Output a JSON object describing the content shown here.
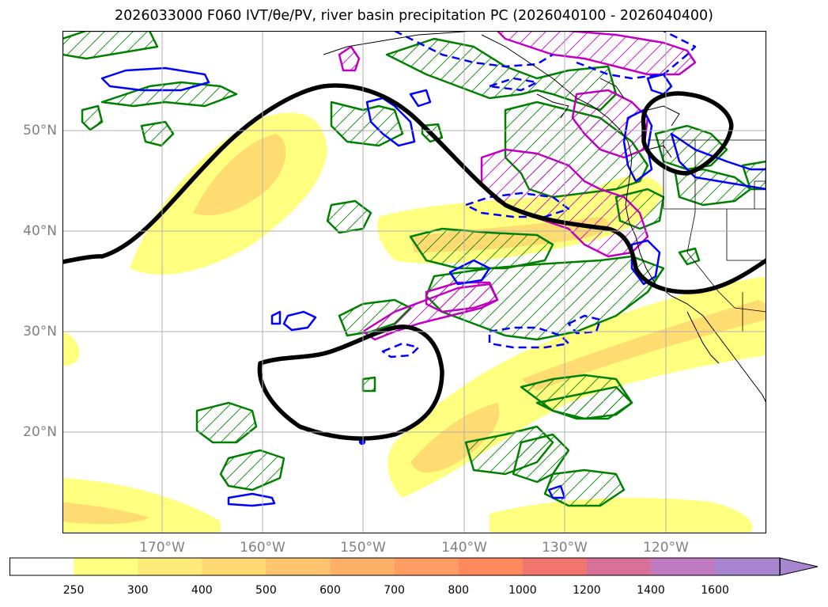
{
  "title_text": "2026033000 F060 IVT/θe/PV, river basin precipitation PC (2026040100 - 2026040400)",
  "lat_labels": [
    "50°N",
    "40°N",
    "30°N",
    "20°N"
  ],
  "lon_labels": [
    "170°W",
    "160°W",
    "150°W",
    "140°W",
    "130°W",
    "120°W"
  ],
  "colorbar": {
    "ticks": [
      "250",
      "300",
      "400",
      "500",
      "600",
      "700",
      "800",
      "1000",
      "1200",
      "1400",
      "1600"
    ],
    "colors": [
      "#ffff80",
      "#ffeb7a",
      "#ffd873",
      "#ffc56e",
      "#ffb068",
      "#ff9c62",
      "#ff885c",
      "#f0766e",
      "#d8709a",
      "#c07ac0",
      "#a886d0"
    ],
    "extend": "max"
  },
  "colors": {
    "ivt_light": "#ffff80",
    "ivt_mid": "#ffd66e",
    "pv_contour": "#000000",
    "theta_green": "#008000",
    "theta_magenta": "#c000c0",
    "anomaly_blue": "#0000ff",
    "grid": "#b0b0b0",
    "coast": "#000000"
  }
}
